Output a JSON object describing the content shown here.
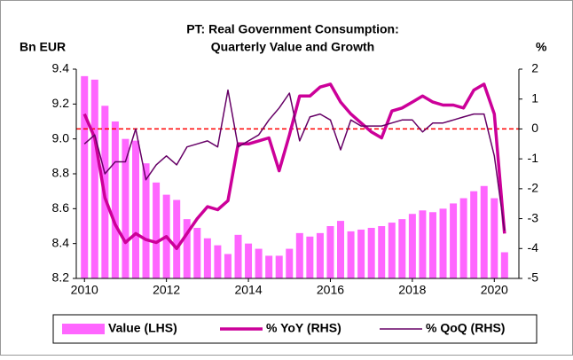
{
  "chart_data": {
    "type": "bar-line",
    "title": [
      "PT: Real Government Consumption:",
      "Quarterly Value and Growth"
    ],
    "ylabel": "Bn EUR",
    "y2label": "%",
    "x": [
      2010,
      2010.25,
      2010.5,
      2010.75,
      2011,
      2011.25,
      2011.5,
      2011.75,
      2012,
      2012.25,
      2012.5,
      2012.75,
      2013,
      2013.25,
      2013.5,
      2013.75,
      2014,
      2014.25,
      2014.5,
      2014.75,
      2015,
      2015.25,
      2015.5,
      2015.75,
      2016,
      2016.25,
      2016.5,
      2016.75,
      2017,
      2017.25,
      2017.5,
      2017.75,
      2018,
      2018.25,
      2018.5,
      2018.75,
      2019,
      2019.25,
      2019.5,
      2019.75,
      2020,
      2020.25
    ],
    "xlim": [
      2009.8,
      2020.6
    ],
    "xticks": [
      2010,
      2012,
      2014,
      2016,
      2018,
      2020
    ],
    "ylim": [
      8.2,
      9.4
    ],
    "yticks": [
      8.2,
      8.4,
      8.6,
      8.8,
      {
        "value": 9,
        "label": "9.0"
      },
      9.2,
      9.4
    ],
    "y2lim": [
      -5,
      2
    ],
    "y2ticks": [
      -5,
      -4,
      -3,
      -2,
      -1,
      0,
      1,
      2
    ],
    "series": [
      {
        "name": "Value (LHS)",
        "type": "bar",
        "color": "#ff66ff",
        "values": [
          9.36,
          9.34,
          9.19,
          9.1,
          9.0,
          8.99,
          8.86,
          8.75,
          8.68,
          8.65,
          8.54,
          8.49,
          8.43,
          8.39,
          8.34,
          8.45,
          8.4,
          8.37,
          8.33,
          8.33,
          8.37,
          8.46,
          8.44,
          8.46,
          8.5,
          8.53,
          8.47,
          8.48,
          8.49,
          8.5,
          8.52,
          8.54,
          8.57,
          8.59,
          8.58,
          8.6,
          8.63,
          8.66,
          8.7,
          8.73,
          8.66,
          8.35
        ]
      },
      {
        "name": "% YoY (RHS)",
        "type": "line",
        "axis": "y2",
        "color": "#cc0099",
        "width": 3.5,
        "values": [
          0.5,
          -0.3,
          -2.3,
          -3.2,
          -3.8,
          -3.5,
          -3.7,
          -3.8,
          -3.6,
          -4.0,
          -3.5,
          -3.0,
          -2.6,
          -2.7,
          -2.4,
          -0.5,
          -0.5,
          -0.4,
          -0.3,
          -1.4,
          -0.2,
          1.1,
          1.1,
          1.4,
          1.5,
          0.9,
          0.5,
          0.2,
          -0.1,
          -0.3,
          0.6,
          0.7,
          0.9,
          1.1,
          0.9,
          0.8,
          0.8,
          0.7,
          1.3,
          1.5,
          0.5,
          -3.5
        ]
      },
      {
        "name": "% QoQ (RHS)",
        "type": "line",
        "axis": "y2",
        "color": "#660066",
        "width": 1.5,
        "values": [
          -0.5,
          -0.2,
          -1.5,
          -1.1,
          -1.1,
          0.0,
          -1.7,
          -1.2,
          -0.9,
          -1.2,
          -0.6,
          -0.5,
          -0.4,
          -0.6,
          1.3,
          -0.6,
          -0.4,
          -0.2,
          0.3,
          0.7,
          1.2,
          -0.4,
          0.4,
          0.5,
          0.3,
          -0.7,
          0.3,
          0.1,
          0.1,
          0.1,
          0.2,
          0.3,
          0.3,
          -0.1,
          0.2,
          0.2,
          0.3,
          0.4,
          0.5,
          0.5,
          -0.9,
          -3.4
        ]
      }
    ],
    "reference_line": {
      "value": 0,
      "axis": "y2",
      "color": "#ff0000"
    }
  }
}
